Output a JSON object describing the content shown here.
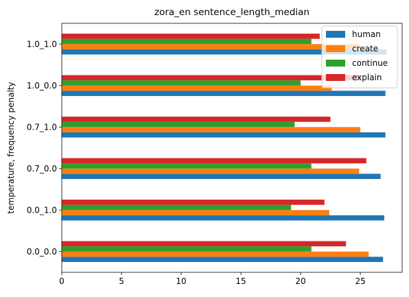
{
  "chart_data": {
    "type": "bar",
    "orientation": "horizontal",
    "title": "zora_en sentence_length_median",
    "xlabel": "",
    "ylabel": "temperature, frequency penalty",
    "categories": [
      "0.0_0.0",
      "0.0_1.0",
      "0.7_0.0",
      "0.7_1.0",
      "1.0_0.0",
      "1.0_1.0"
    ],
    "xlim": [
      0,
      28.5
    ],
    "xticks": [
      0,
      5,
      10,
      15,
      20,
      25
    ],
    "grid": false,
    "legend_position": "top-right",
    "series": [
      {
        "name": "human",
        "color": "#1f77b4",
        "values": [
          26.9,
          27.0,
          26.7,
          27.1,
          27.1,
          27.2
        ]
      },
      {
        "name": "create",
        "color": "#ff7f0e",
        "values": [
          25.7,
          22.4,
          24.9,
          25.0,
          22.6,
          24.9
        ]
      },
      {
        "name": "continue",
        "color": "#2ca02c",
        "values": [
          20.9,
          19.2,
          20.9,
          19.5,
          20.0,
          20.9
        ]
      },
      {
        "name": "explain",
        "color": "#d62728",
        "values": [
          23.8,
          22.0,
          25.5,
          22.5,
          25.0,
          21.6
        ]
      }
    ]
  }
}
